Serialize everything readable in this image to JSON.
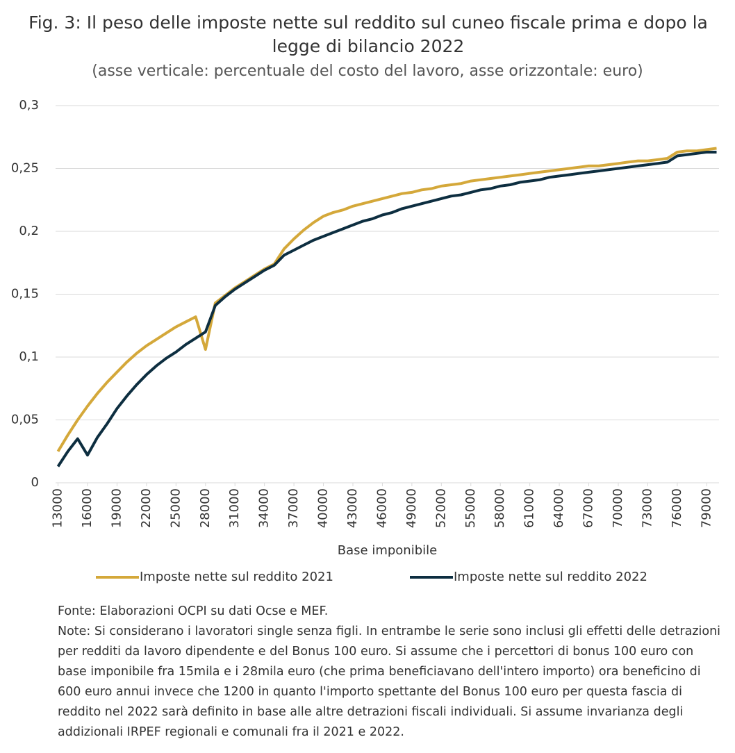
{
  "chart_data": {
    "type": "line",
    "title": "Fig. 3: Il peso delle imposte nette sul reddito sul cuneo fiscale prima e dopo la legge di bilancio 2022",
    "subtitle": "(asse verticale: percentuale del costo del lavoro, asse orizzontale: euro)",
    "xlabel": "Base imponibile",
    "x": [
      13000,
      14000,
      15000,
      16000,
      17000,
      18000,
      19000,
      20000,
      21000,
      22000,
      23000,
      24000,
      25000,
      26000,
      27000,
      28000,
      29000,
      30000,
      31000,
      32000,
      33000,
      34000,
      35000,
      36000,
      37000,
      38000,
      39000,
      40000,
      41000,
      42000,
      43000,
      44000,
      45000,
      46000,
      47000,
      48000,
      49000,
      50000,
      51000,
      52000,
      53000,
      54000,
      55000,
      56000,
      57000,
      58000,
      59000,
      60000,
      61000,
      62000,
      63000,
      64000,
      65000,
      66000,
      67000,
      68000,
      69000,
      70000,
      71000,
      72000,
      73000,
      74000,
      75000,
      76000,
      77000,
      78000,
      79000,
      80000
    ],
    "series": [
      {
        "name": "Imposte nette sul reddito 2021",
        "color": "#d4a83a",
        "values": [
          0.025,
          0.038,
          0.05,
          0.061,
          0.071,
          0.08,
          0.088,
          0.096,
          0.103,
          0.109,
          0.114,
          0.119,
          0.124,
          0.128,
          0.132,
          0.106,
          0.143,
          0.149,
          0.155,
          0.16,
          0.165,
          0.17,
          0.174,
          0.186,
          0.194,
          0.201,
          0.207,
          0.212,
          0.215,
          0.217,
          0.22,
          0.222,
          0.224,
          0.226,
          0.228,
          0.23,
          0.231,
          0.233,
          0.234,
          0.236,
          0.237,
          0.238,
          0.24,
          0.241,
          0.242,
          0.243,
          0.244,
          0.245,
          0.246,
          0.247,
          0.248,
          0.249,
          0.25,
          0.251,
          0.252,
          0.252,
          0.253,
          0.254,
          0.255,
          0.256,
          0.256,
          0.257,
          0.258,
          0.263,
          0.264,
          0.264,
          0.265,
          0.266
        ]
      },
      {
        "name": "Imposte nette sul reddito 2022",
        "color": "#0d2e40",
        "values": [
          0.013,
          0.025,
          0.035,
          0.022,
          0.036,
          0.047,
          0.059,
          0.069,
          0.078,
          0.086,
          0.093,
          0.099,
          0.104,
          0.11,
          0.115,
          0.12,
          0.141,
          0.148,
          0.154,
          0.159,
          0.164,
          0.169,
          0.173,
          0.181,
          0.185,
          0.189,
          0.193,
          0.196,
          0.199,
          0.202,
          0.205,
          0.208,
          0.21,
          0.213,
          0.215,
          0.218,
          0.22,
          0.222,
          0.224,
          0.226,
          0.228,
          0.229,
          0.231,
          0.233,
          0.234,
          0.236,
          0.237,
          0.239,
          0.24,
          0.241,
          0.243,
          0.244,
          0.245,
          0.246,
          0.247,
          0.248,
          0.249,
          0.25,
          0.251,
          0.252,
          0.253,
          0.254,
          0.255,
          0.26,
          0.261,
          0.262,
          0.263,
          0.263
        ]
      }
    ],
    "xlim": [
      12750,
      80250
    ],
    "xticks": [
      13000,
      16000,
      19000,
      22000,
      25000,
      28000,
      31000,
      34000,
      37000,
      40000,
      43000,
      46000,
      49000,
      52000,
      55000,
      58000,
      61000,
      64000,
      67000,
      70000,
      73000,
      76000,
      79000
    ],
    "ylim": [
      0,
      0.3
    ],
    "yticks": [
      0,
      {
        "value": 0.05,
        "label": "0,05"
      },
      {
        "value": 0.1,
        "label": "0,1"
      },
      {
        "value": 0.15,
        "label": "0,15"
      },
      {
        "value": 0.2,
        "label": "0,2"
      },
      {
        "value": 0.25,
        "label": "0,25"
      },
      {
        "value": 0.3,
        "label": "0,3"
      }
    ],
    "grid": true,
    "legend": "bottom"
  },
  "source": "Fonte: Elaborazioni OCPI su dati Ocse e MEF.",
  "note": "Note: Si considerano i lavoratori single senza figli. In entrambe le serie sono inclusi gli effetti delle detrazioni per redditi da lavoro dipendente e del Bonus 100 euro. Si assume che i percettori di bonus 100 euro con base imponibile fra 15mila e i 28mila euro (che prima beneficiavano dell'intero importo) ora beneficino di 600 euro annui invece che 1200 in quanto l'importo spettante del Bonus 100 euro per questa fascia di reddito nel 2022 sarà definito in base alle altre detrazioni fiscali individuali. Si assume invarianza degli addizionali IRPEF regionali e comunali fra il 2021 e 2022."
}
